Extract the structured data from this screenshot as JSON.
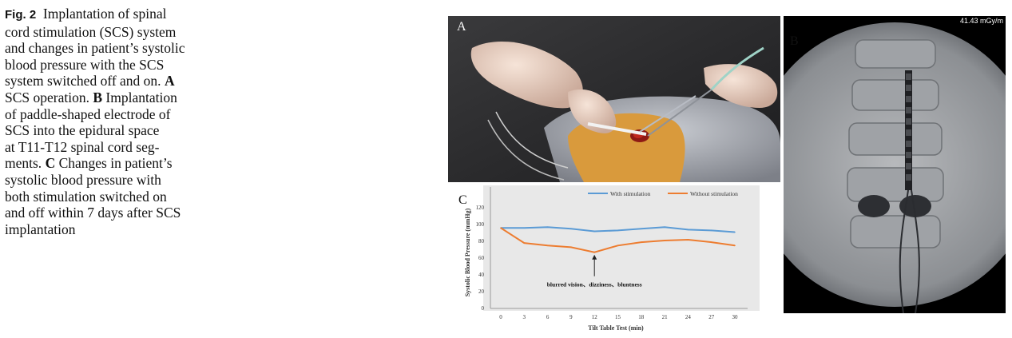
{
  "caption": {
    "fig_label": "Fig. 2",
    "title_1": "Implantation of spinal",
    "line_2": "cord stimulation (SCS) system",
    "line_3": "and changes in patient’s systolic",
    "line_4": "blood pressure with the SCS",
    "line_5a": "system switched off and on.",
    "label_a": "A",
    "line_6a": "SCS operation.",
    "label_b": "B",
    "line_6b": "Implantation",
    "line_7": "of paddle-shaped electrode of",
    "line_8": "SCS into the epidural space",
    "line_9": "at T11-T12 spinal cord seg-",
    "line_10a": "ments.",
    "label_c": "C",
    "line_10b": "Changes in patient’s",
    "line_11": "systolic blood pressure with",
    "line_12": "both stimulation switched on",
    "line_13": "and off within 7 days after SCS",
    "line_14": "implantation"
  },
  "panel_a": {
    "letter": "A"
  },
  "panel_b": {
    "letter": "B",
    "dose_readout": "41.43 mGy/m"
  },
  "chart_data": {
    "type": "line",
    "panel_letter": "C",
    "xlabel": "Tilt  Table Test  (min)",
    "ylabel": "Systolic Blood Pressure (mmHg)",
    "x": [
      0,
      3,
      6,
      9,
      12,
      15,
      18,
      21,
      24,
      27,
      30
    ],
    "xlim": [
      0,
      30
    ],
    "ylim": [
      0,
      120
    ],
    "yticks": [
      0,
      20,
      40,
      60,
      80,
      100,
      120
    ],
    "grid": false,
    "legend_position": "top",
    "series": [
      {
        "name": "With stimulation",
        "color": "#5b9bd5",
        "values": [
          95,
          95,
          96,
          94,
          91,
          92,
          94,
          96,
          93,
          92,
          90
        ]
      },
      {
        "name": "Without stimulation",
        "color": "#ed7d31",
        "values": [
          95,
          77,
          74,
          72,
          66,
          74,
          78,
          80,
          81,
          78,
          74
        ]
      }
    ],
    "annotation": {
      "text": "blurred vision、dizziness、bluntness",
      "x": 12,
      "y": 66
    }
  }
}
